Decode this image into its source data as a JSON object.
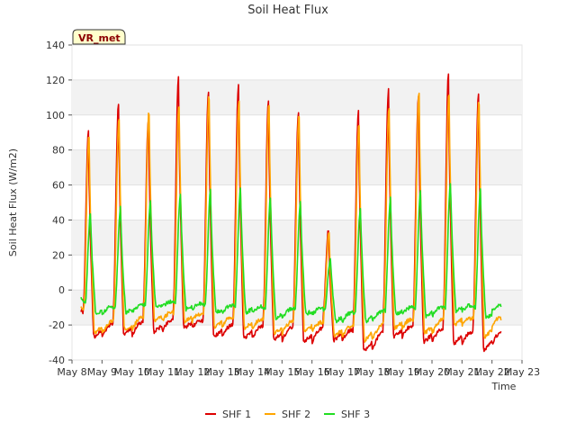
{
  "chart_data": {
    "type": "line",
    "title": "Soil Heat Flux",
    "xlabel": "Time",
    "ylabel": "Soil Heat Flux (W/m2)",
    "badge": "VR_met",
    "ylim": [
      -40,
      140
    ],
    "yticks": [
      -40,
      -20,
      0,
      20,
      40,
      60,
      80,
      100,
      120,
      140
    ],
    "xlim": [
      0,
      15
    ],
    "xticks": [
      0,
      1,
      2,
      3,
      4,
      5,
      6,
      7,
      8,
      9,
      10,
      11,
      12,
      13,
      14,
      15
    ],
    "xtick_labels": [
      "May 8",
      "May 9",
      "May 10",
      "May 11",
      "May 12",
      "May 13",
      "May 14",
      "May 15",
      "May 16",
      "May 17",
      "May 18",
      "May 19",
      "May 20",
      "May 21",
      "May 22",
      "May 23"
    ],
    "x_units": "days since May 8",
    "data_start": 0.3,
    "data_end": 14.3,
    "series": [
      {
        "name": "SHF 1",
        "color": "#dd0000",
        "phase": 0.0,
        "start_value": -11,
        "daily_peaks": [
          90,
          106,
          97,
          121,
          114,
          117,
          108,
          102,
          34,
          102,
          114,
          110,
          123,
          112
        ],
        "daily_mins": [
          -27,
          -26,
          -24,
          -22,
          -27,
          -28,
          -29,
          -30,
          -29,
          -35,
          -27,
          -30,
          -31,
          -35
        ]
      },
      {
        "name": "SHF 2",
        "color": "#ffa500",
        "phase": 0.02,
        "start_value": -10,
        "daily_peaks": [
          90,
          100,
          104,
          108,
          113,
          110,
          108,
          103,
          34,
          96,
          106,
          115,
          114,
          110
        ],
        "daily_mins": [
          -25,
          -23,
          -18,
          -18,
          -21,
          -22,
          -25,
          -24,
          -27,
          -29,
          -22,
          -25,
          -20,
          -27
        ]
      },
      {
        "name": "SHF 3",
        "color": "#22dd22",
        "phase": 0.07,
        "start_value": -6,
        "daily_peaks": [
          44,
          47,
          51,
          56,
          57,
          58,
          53,
          51,
          18,
          47,
          53,
          56,
          62,
          58
        ],
        "daily_mins": [
          -14,
          -13,
          -10,
          -11,
          -13,
          -13,
          -16,
          -14,
          -18,
          -18,
          -14,
          -15,
          -12,
          -16
        ]
      }
    ],
    "legend": [
      {
        "label": "SHF 1",
        "color": "#dd0000"
      },
      {
        "label": "SHF 2",
        "color": "#ffa500"
      },
      {
        "label": "SHF 3",
        "color": "#22dd22"
      }
    ],
    "grid_bands": true
  }
}
